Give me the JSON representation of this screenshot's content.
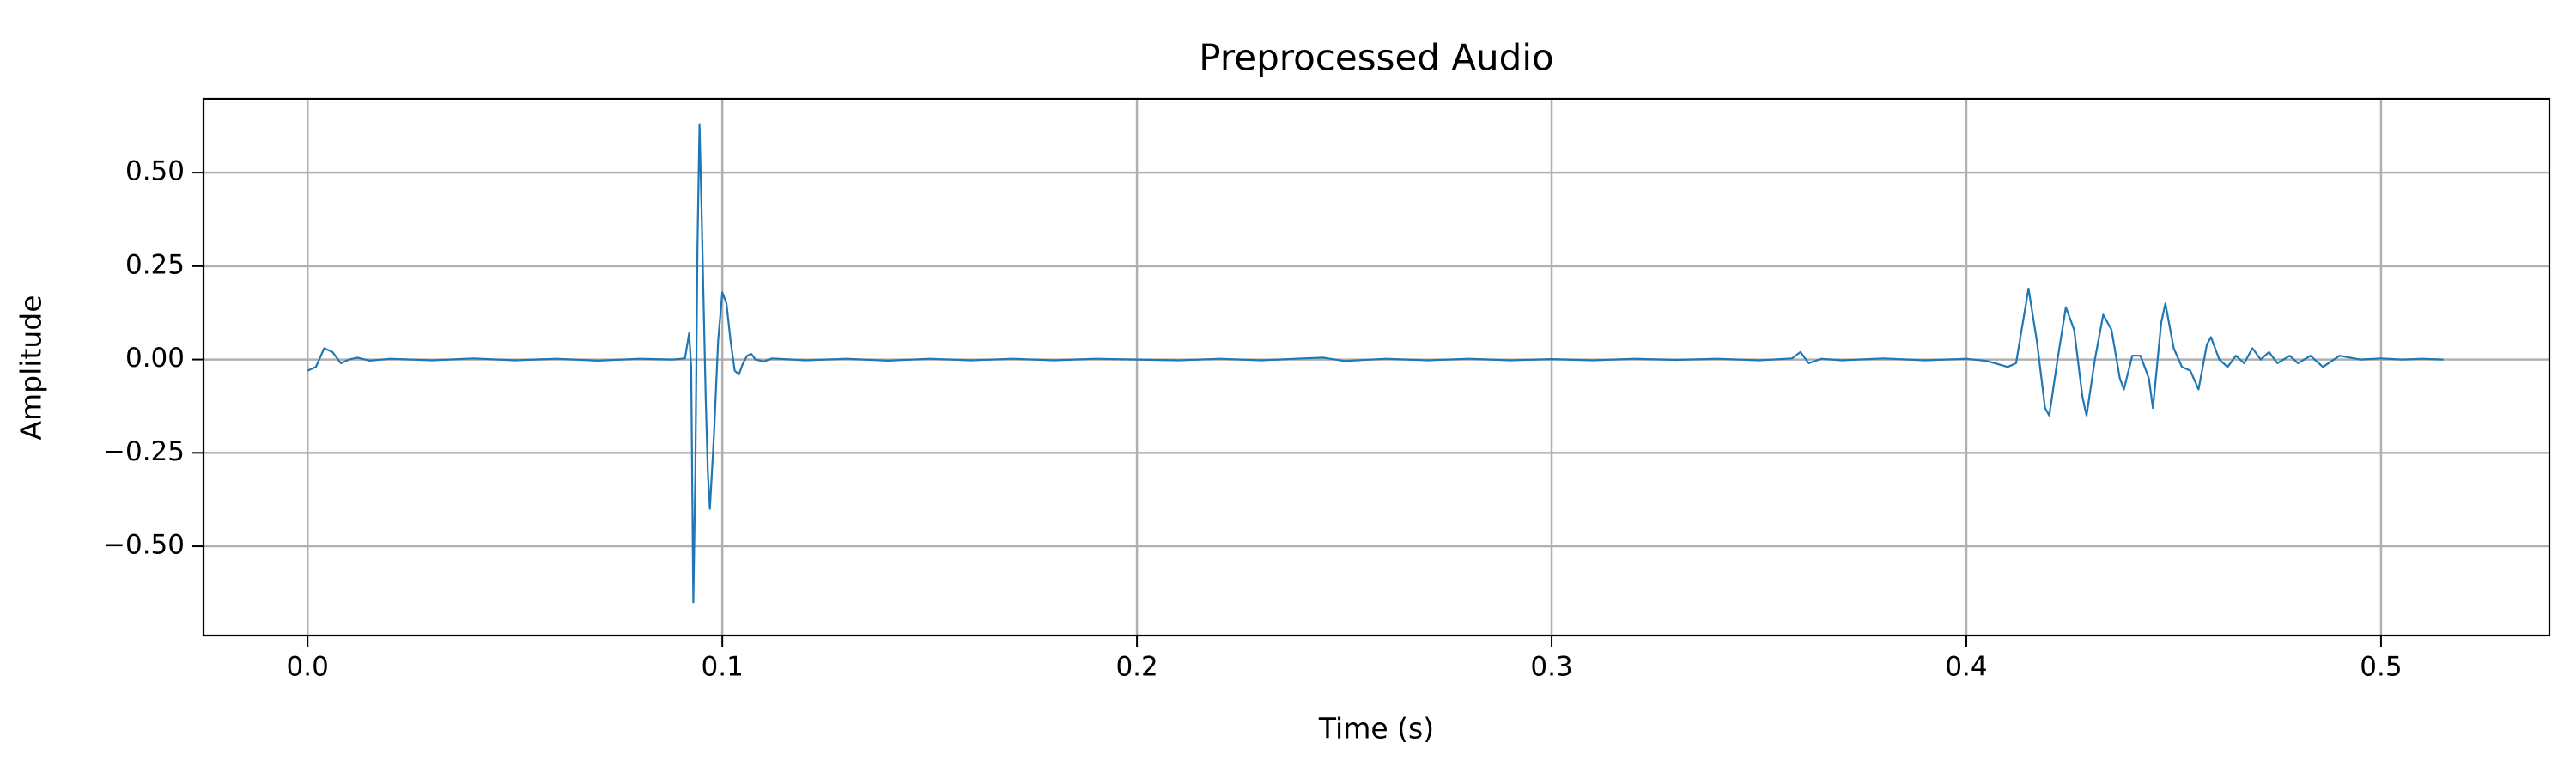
{
  "chart_data": {
    "type": "line",
    "title": "Preprocessed Audio",
    "xlabel": "Time (s)",
    "ylabel": "Amplitude",
    "xlim": [
      -0.0251,
      0.5406
    ],
    "ylim": [
      -0.739,
      0.698
    ],
    "xticks": [
      {
        "value": 0,
        "label": "0.0"
      },
      0.1,
      0.2,
      0.3,
      0.4,
      0.5
    ],
    "yticks": [
      {
        "value": -0.5,
        "label": "−0.50"
      },
      {
        "value": -0.25,
        "label": "−0.25"
      },
      {
        "value": 0,
        "label": "0.00"
      },
      {
        "value": 0.25,
        "label": "0.25"
      },
      {
        "value": 0.5,
        "label": "0.50"
      }
    ],
    "grid": true,
    "series": [
      {
        "color": "#1f77b4",
        "x": [
          0.0,
          0.002,
          0.004,
          0.006,
          0.008,
          0.01,
          0.012,
          0.015,
          0.02,
          0.03,
          0.04,
          0.05,
          0.06,
          0.07,
          0.08,
          0.088,
          0.091,
          0.092,
          0.0925,
          0.093,
          0.0935,
          0.094,
          0.0945,
          0.095,
          0.096,
          0.0965,
          0.097,
          0.098,
          0.099,
          0.1,
          0.101,
          0.102,
          0.103,
          0.104,
          0.105,
          0.106,
          0.107,
          0.108,
          0.11,
          0.112,
          0.12,
          0.13,
          0.14,
          0.15,
          0.16,
          0.17,
          0.18,
          0.19,
          0.2,
          0.21,
          0.22,
          0.23,
          0.24,
          0.245,
          0.25,
          0.26,
          0.27,
          0.28,
          0.29,
          0.3,
          0.31,
          0.32,
          0.33,
          0.34,
          0.35,
          0.358,
          0.36,
          0.362,
          0.365,
          0.37,
          0.38,
          0.39,
          0.4,
          0.405,
          0.41,
          0.412,
          0.415,
          0.417,
          0.419,
          0.42,
          0.422,
          0.424,
          0.426,
          0.428,
          0.429,
          0.431,
          0.433,
          0.435,
          0.437,
          0.438,
          0.44,
          0.442,
          0.444,
          0.445,
          0.447,
          0.448,
          0.45,
          0.452,
          0.454,
          0.456,
          0.458,
          0.459,
          0.461,
          0.463,
          0.465,
          0.467,
          0.469,
          0.471,
          0.473,
          0.475,
          0.478,
          0.48,
          0.483,
          0.486,
          0.49,
          0.495,
          0.5,
          0.505,
          0.51,
          0.515
        ],
        "values": [
          -0.03,
          -0.02,
          0.03,
          0.02,
          -0.01,
          0.0,
          0.005,
          -0.003,
          0.002,
          -0.002,
          0.003,
          -0.002,
          0.002,
          -0.003,
          0.002,
          0.0,
          0.003,
          0.07,
          -0.02,
          -0.65,
          -0.3,
          0.3,
          0.63,
          0.4,
          -0.1,
          -0.3,
          -0.4,
          -0.2,
          0.05,
          0.18,
          0.15,
          0.05,
          -0.03,
          -0.04,
          -0.01,
          0.01,
          0.015,
          0.0,
          -0.005,
          0.003,
          -0.002,
          0.002,
          -0.003,
          0.002,
          -0.002,
          0.002,
          -0.002,
          0.002,
          0.0,
          -0.002,
          0.002,
          -0.002,
          0.003,
          0.005,
          -0.004,
          0.002,
          -0.002,
          0.002,
          -0.002,
          0.001,
          -0.002,
          0.002,
          -0.001,
          0.002,
          -0.002,
          0.003,
          0.02,
          -0.01,
          0.002,
          -0.002,
          0.003,
          -0.002,
          0.002,
          -0.004,
          -0.02,
          -0.01,
          0.19,
          0.05,
          -0.13,
          -0.15,
          0.0,
          0.14,
          0.08,
          -0.1,
          -0.15,
          0.0,
          0.12,
          0.08,
          -0.05,
          -0.08,
          0.01,
          0.01,
          -0.05,
          -0.13,
          0.1,
          0.15,
          0.03,
          -0.02,
          -0.03,
          -0.08,
          0.04,
          0.06,
          0.0,
          -0.02,
          0.01,
          -0.01,
          0.03,
          0.0,
          0.02,
          -0.01,
          0.01,
          -0.01,
          0.01,
          -0.02,
          0.01,
          0.0,
          0.003,
          0.0,
          0.002,
          0.0
        ]
      }
    ]
  }
}
